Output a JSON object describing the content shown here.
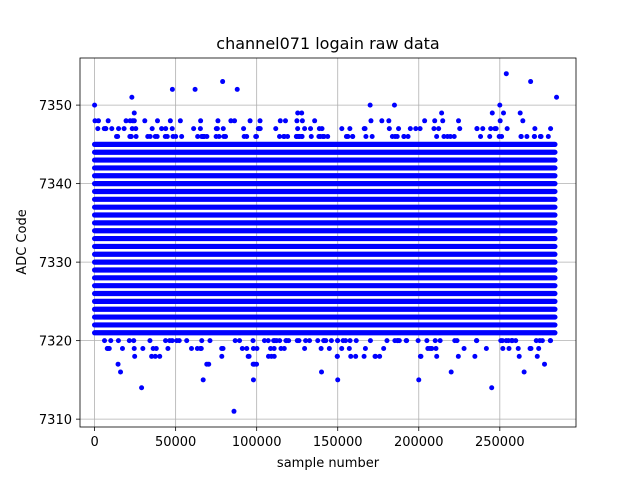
{
  "chart_data": {
    "type": "scatter",
    "title": "channel071 logain raw data",
    "xlabel": "sample number",
    "ylabel": "ADC Code",
    "xlim": [
      -9000,
      297000
    ],
    "ylim": [
      7309,
      7356
    ],
    "x_ticks": [
      0,
      50000,
      100000,
      150000,
      200000,
      250000
    ],
    "y_ticks": [
      7310,
      7320,
      7330,
      7340,
      7350
    ],
    "grid": true,
    "marker_color": "#0000ff",
    "dense_band": {
      "x_range": [
        0,
        284000
      ],
      "y_values": [
        7321,
        7322,
        7323,
        7324,
        7325,
        7326,
        7327,
        7328,
        7329,
        7330,
        7331,
        7332,
        7333,
        7334,
        7335,
        7336,
        7337,
        7338,
        7339,
        7340,
        7341,
        7342,
        7343,
        7344,
        7345
      ]
    },
    "sparse_levels": [
      {
        "y": 7346,
        "density": 0.55
      },
      {
        "y": 7347,
        "density": 0.35
      },
      {
        "y": 7348,
        "density": 0.22
      },
      {
        "y": 7320,
        "density": 0.5
      },
      {
        "y": 7319,
        "density": 0.3
      },
      {
        "y": 7318,
        "density": 0.18
      },
      {
        "y": 7349,
        "density": 0.05
      },
      {
        "y": 7317,
        "density": 0.05
      }
    ],
    "outliers": [
      {
        "x": 0,
        "y": 7350
      },
      {
        "x": 23000,
        "y": 7351
      },
      {
        "x": 48000,
        "y": 7352
      },
      {
        "x": 62000,
        "y": 7352
      },
      {
        "x": 79000,
        "y": 7353
      },
      {
        "x": 88000,
        "y": 7352
      },
      {
        "x": 86000,
        "y": 7311
      },
      {
        "x": 29000,
        "y": 7314
      },
      {
        "x": 98000,
        "y": 7315
      },
      {
        "x": 67000,
        "y": 7315
      },
      {
        "x": 150000,
        "y": 7315
      },
      {
        "x": 200000,
        "y": 7315
      },
      {
        "x": 245000,
        "y": 7314
      },
      {
        "x": 254000,
        "y": 7354
      },
      {
        "x": 269000,
        "y": 7353
      },
      {
        "x": 285000,
        "y": 7351
      },
      {
        "x": 170000,
        "y": 7350
      },
      {
        "x": 185000,
        "y": 7350
      },
      {
        "x": 250000,
        "y": 7350
      },
      {
        "x": 16000,
        "y": 7316
      },
      {
        "x": 140000,
        "y": 7316
      },
      {
        "x": 220000,
        "y": 7316
      },
      {
        "x": 265000,
        "y": 7316
      }
    ]
  }
}
